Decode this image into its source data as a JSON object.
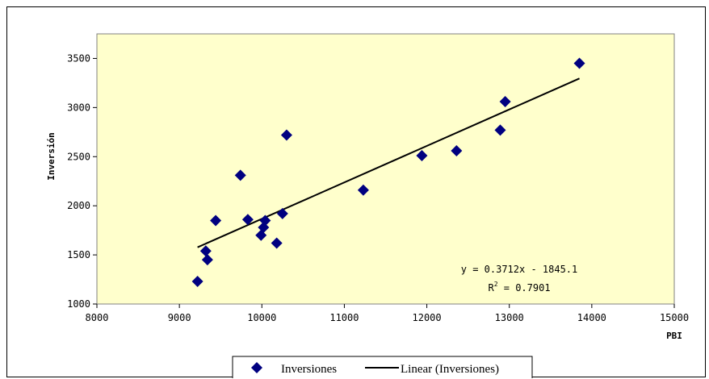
{
  "chart_data": {
    "type": "scatter",
    "xlabel": "PBI",
    "ylabel": "Inversión",
    "xlim": [
      8000,
      15000
    ],
    "ylim": [
      1000,
      3750
    ],
    "xticks": [
      8000,
      9000,
      10000,
      11000,
      12000,
      13000,
      14000,
      15000
    ],
    "yticks": [
      1000,
      1500,
      2000,
      2500,
      3000,
      3500
    ],
    "plot_background": "#FFFFCC",
    "marker_color": "#000080",
    "grid": false,
    "legend_position": "bottom",
    "series": [
      {
        "name": "Inversiones",
        "x": [
          9220,
          9320,
          9340,
          9440,
          9740,
          9830,
          9990,
          10020,
          10040,
          10180,
          10250,
          10300,
          11230,
          11940,
          12360,
          12890,
          12950,
          13850
        ],
        "y": [
          1230,
          1540,
          1450,
          1850,
          2310,
          1860,
          1700,
          1780,
          1850,
          1620,
          1920,
          2720,
          2160,
          2510,
          2560,
          2770,
          3060,
          3450
        ]
      }
    ],
    "trendline": {
      "name": "Linear (Inversiones)",
      "type": "linear",
      "slope": 0.3712,
      "intercept": -1845.1,
      "x_range": [
        9220,
        13850
      ],
      "equation_text": "y = 0.3712x - 1845.1",
      "r2_prefix": "R",
      "r2_sup": "2",
      "r2_rest": " = 0.7901"
    },
    "legend": [
      "Inversiones",
      "Linear (Inversiones)"
    ]
  }
}
